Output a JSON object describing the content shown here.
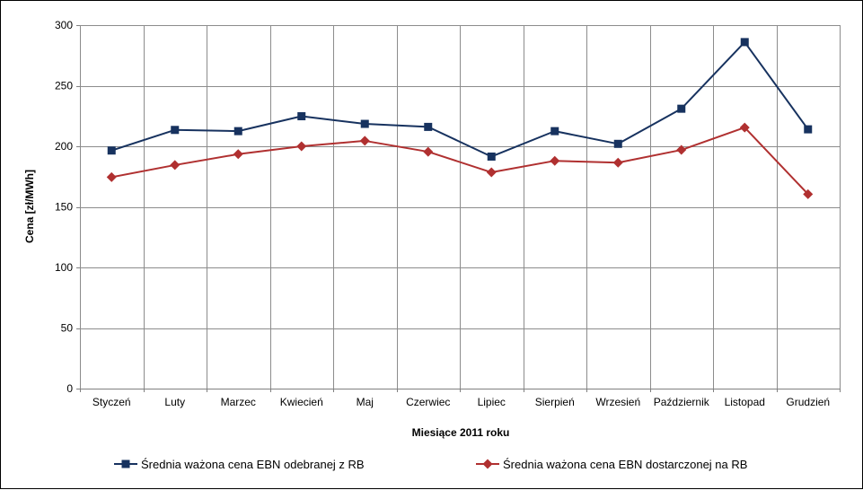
{
  "chart_data": {
    "type": "line",
    "categories": [
      "Styczeń",
      "Luty",
      "Marzec",
      "Kwiecień",
      "Maj",
      "Czerwiec",
      "Lipiec",
      "Sierpień",
      "Wrzesień",
      "Październik",
      "Listopad",
      "Grudzień"
    ],
    "series": [
      {
        "name": "Średnia ważona cena EBN odebranej z RB",
        "color": "#17325f",
        "marker": "square",
        "values": [
          196.5,
          213.5,
          212.5,
          224.8,
          218.5,
          216,
          191.5,
          212.5,
          202,
          231,
          286,
          214
        ]
      },
      {
        "name": "Średnia ważona cena EBN dostarczonej na RB",
        "color": "#b03030",
        "marker": "diamond",
        "values": [
          174.5,
          184.5,
          193.5,
          200,
          204.5,
          195.5,
          178.5,
          188,
          186.5,
          197,
          215.5,
          160.5
        ]
      }
    ],
    "xlabel": "Miesiące 2011  roku",
    "ylabel": "Cena [zł/MWh]",
    "ylim": [
      0,
      300
    ],
    "yticks": [
      0,
      50,
      100,
      150,
      200,
      250,
      300
    ],
    "grid": true,
    "legend_position": "bottom"
  }
}
